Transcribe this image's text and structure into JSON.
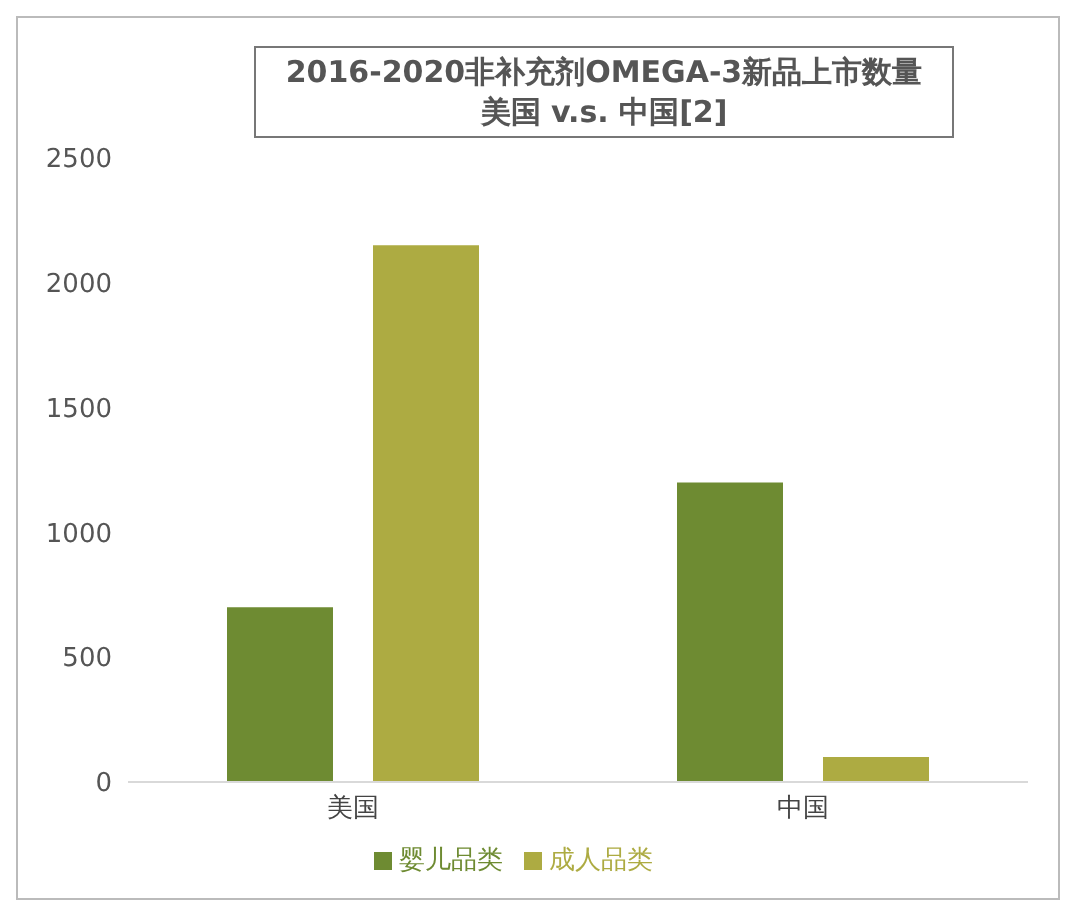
{
  "chart_data": {
    "type": "bar",
    "title": "2016-2020非补充剂OMEGA-3新品上市数量",
    "subtitle": "美国 v.s. 中国[2]",
    "categories": [
      "美国",
      "中国"
    ],
    "series": [
      {
        "name": "婴儿品类",
        "color": "#6e8b32",
        "values": [
          700,
          1200
        ]
      },
      {
        "name": "成人品类",
        "color": "#adab42",
        "values": [
          2150,
          100
        ]
      }
    ],
    "ylim": [
      0,
      2500
    ],
    "yticks": [
      0,
      500,
      1000,
      1500,
      2000,
      2500
    ],
    "grid": false,
    "legend": "bottom"
  }
}
